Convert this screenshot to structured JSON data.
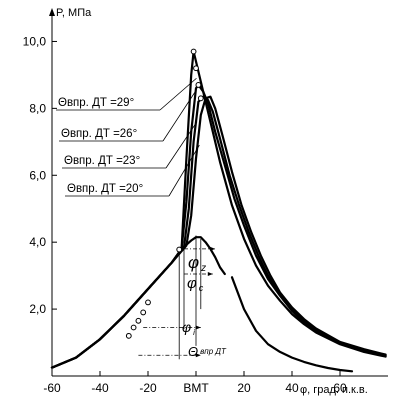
{
  "chart_data": {
    "type": "line",
    "title": "",
    "ylabel": "P, МПа",
    "xlabel": "φ, град. п.к.в.",
    "xlim": [
      -60,
      80
    ],
    "ylim": [
      0,
      11
    ],
    "x_ticks": [
      {
        "value": -60,
        "label": "-60"
      },
      {
        "value": -40,
        "label": "-40"
      },
      {
        "value": -20,
        "label": "-20"
      },
      {
        "value": 0,
        "label": "ВМТ"
      },
      {
        "value": 20,
        "label": "20"
      },
      {
        "value": 40,
        "label": "40"
      },
      {
        "value": 60,
        "label": "60"
      }
    ],
    "y_ticks": [
      {
        "value": 2,
        "label": "2,0"
      },
      {
        "value": 4,
        "label": "4,0"
      },
      {
        "value": 6,
        "label": "6,0"
      },
      {
        "value": 8,
        "label": "8,0"
      },
      {
        "value": 10,
        "label": "10,0"
      }
    ],
    "grid": false,
    "series": [
      {
        "name": "Θвпр. ДТ =29°",
        "points": [
          [
            -60,
            0.25
          ],
          [
            -50,
            0.55
          ],
          [
            -40,
            1.1
          ],
          [
            -30,
            1.8
          ],
          [
            -20,
            2.6
          ],
          [
            -10,
            3.4
          ],
          [
            -6,
            3.8
          ],
          [
            -4,
            6.5
          ],
          [
            -2,
            9.0
          ],
          [
            -1,
            9.7
          ],
          [
            0,
            9.4
          ],
          [
            2,
            8.8
          ],
          [
            4,
            8.2
          ],
          [
            7,
            7.3
          ],
          [
            10,
            6.4
          ],
          [
            15,
            5.1
          ],
          [
            20,
            4.1
          ],
          [
            25,
            3.3
          ],
          [
            30,
            2.7
          ],
          [
            35,
            2.25
          ],
          [
            40,
            1.85
          ],
          [
            45,
            1.55
          ],
          [
            50,
            1.3
          ],
          [
            60,
            0.95
          ],
          [
            70,
            0.72
          ],
          [
            79,
            0.58
          ]
        ]
      },
      {
        "name": "Θвпр. ДТ =26°",
        "points": [
          [
            -60,
            0.25
          ],
          [
            -50,
            0.55
          ],
          [
            -40,
            1.1
          ],
          [
            -30,
            1.8
          ],
          [
            -20,
            2.6
          ],
          [
            -10,
            3.4
          ],
          [
            -6,
            3.8
          ],
          [
            -4,
            5.2
          ],
          [
            -2,
            7.3
          ],
          [
            0,
            8.6
          ],
          [
            1,
            8.7
          ],
          [
            3,
            8.5
          ],
          [
            5,
            8.15
          ],
          [
            8,
            7.3
          ],
          [
            12,
            6.3
          ],
          [
            16,
            5.3
          ],
          [
            20,
            4.5
          ],
          [
            25,
            3.6
          ],
          [
            30,
            2.9
          ],
          [
            35,
            2.4
          ],
          [
            40,
            1.95
          ],
          [
            45,
            1.6
          ],
          [
            50,
            1.35
          ],
          [
            60,
            0.98
          ],
          [
            70,
            0.75
          ],
          [
            79,
            0.6
          ]
        ]
      },
      {
        "name": "Θвпр. ДТ =23°",
        "points": [
          [
            -60,
            0.25
          ],
          [
            -50,
            0.55
          ],
          [
            -40,
            1.1
          ],
          [
            -30,
            1.8
          ],
          [
            -20,
            2.6
          ],
          [
            -10,
            3.4
          ],
          [
            -5,
            3.85
          ],
          [
            -3,
            5.0
          ],
          [
            -1,
            7.0
          ],
          [
            1,
            8.2
          ],
          [
            3,
            8.35
          ],
          [
            5,
            8.25
          ],
          [
            7,
            7.9
          ],
          [
            10,
            7.1
          ],
          [
            14,
            6.0
          ],
          [
            18,
            5.1
          ],
          [
            22,
            4.3
          ],
          [
            26,
            3.6
          ],
          [
            30,
            3.0
          ],
          [
            35,
            2.45
          ],
          [
            40,
            2.0
          ],
          [
            45,
            1.65
          ],
          [
            50,
            1.4
          ],
          [
            60,
            1.0
          ],
          [
            70,
            0.78
          ],
          [
            79,
            0.62
          ]
        ]
      },
      {
        "name": "Θвпр. ДТ =20°",
        "points": [
          [
            -60,
            0.25
          ],
          [
            -50,
            0.55
          ],
          [
            -40,
            1.1
          ],
          [
            -30,
            1.8
          ],
          [
            -20,
            2.6
          ],
          [
            -10,
            3.4
          ],
          [
            -4,
            3.9
          ],
          [
            -2,
            4.8
          ],
          [
            0,
            6.5
          ],
          [
            2,
            7.8
          ],
          [
            4,
            8.3
          ],
          [
            6,
            8.35
          ],
          [
            8,
            8.0
          ],
          [
            11,
            7.2
          ],
          [
            15,
            6.1
          ],
          [
            19,
            5.1
          ],
          [
            23,
            4.3
          ],
          [
            27,
            3.6
          ],
          [
            31,
            3.0
          ],
          [
            35,
            2.5
          ],
          [
            40,
            2.05
          ],
          [
            45,
            1.7
          ],
          [
            50,
            1.42
          ],
          [
            60,
            1.02
          ],
          [
            70,
            0.8
          ],
          [
            79,
            0.64
          ]
        ]
      },
      {
        "name": "",
        "points": [
          [
            -60,
            0.25
          ],
          [
            -50,
            0.55
          ],
          [
            -40,
            1.1
          ],
          [
            -30,
            1.8
          ],
          [
            -20,
            2.6
          ],
          [
            -10,
            3.4
          ],
          [
            -6,
            3.8
          ],
          [
            -2,
            4.05
          ],
          [
            0,
            4.15
          ],
          [
            2,
            4.15
          ],
          [
            4,
            4.0
          ],
          [
            6,
            3.8
          ],
          [
            8,
            3.55
          ],
          [
            10,
            3.25
          ],
          [
            12,
            3.05
          ]
        ]
      },
      {
        "name": "",
        "points": [
          [
            15,
            2.95
          ],
          [
            20,
            2.0
          ],
          [
            25,
            1.35
          ],
          [
            30,
            0.95
          ],
          [
            35,
            0.72
          ],
          [
            40,
            0.55
          ],
          [
            45,
            0.42
          ],
          [
            50,
            0.32
          ],
          [
            55,
            0.24
          ],
          [
            60,
            0.18
          ],
          [
            65,
            0.14
          ]
        ]
      }
    ],
    "markers": [
      [
        -28,
        1.2
      ],
      [
        -26,
        1.45
      ],
      [
        -24,
        1.65
      ],
      [
        -22,
        1.9
      ],
      [
        -20,
        2.2
      ],
      [
        -7,
        3.78
      ],
      [
        -1,
        9.7
      ],
      [
        0,
        9.2
      ],
      [
        1,
        8.7
      ],
      [
        2,
        8.3
      ]
    ],
    "legend": {
      "placement": "left-center",
      "labels": [
        "Θвпр. ДТ =29°",
        "Θвпр. ДТ =26°",
        "Θвпр. ДТ =23°",
        "Θвпр. ДТ =20°"
      ]
    },
    "annotations": [
      {
        "symbol": "φ",
        "subscript": "z"
      },
      {
        "symbol": "φ",
        "subscript": "c"
      },
      {
        "symbol": "φ",
        "subscript": "i"
      },
      {
        "symbol": "Θ",
        "subscript": "впр ДТ"
      }
    ]
  }
}
